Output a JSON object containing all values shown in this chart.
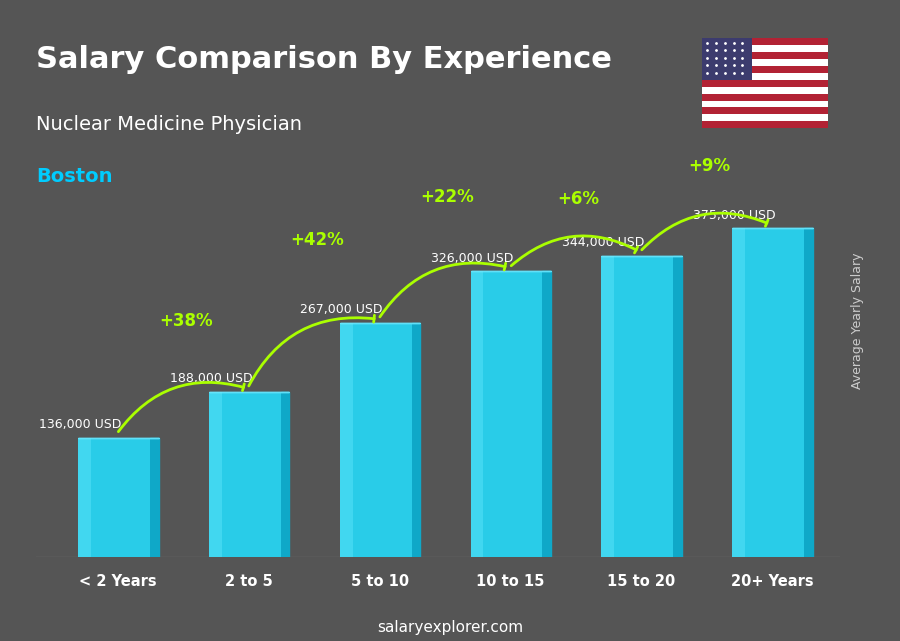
{
  "title_main": "Salary Comparison By Experience",
  "title_sub": "Nuclear Medicine Physician",
  "title_city": "Boston",
  "categories": [
    "< 2 Years",
    "2 to 5",
    "5 to 10",
    "10 to 15",
    "15 to 20",
    "20+ Years"
  ],
  "values": [
    136000,
    188000,
    267000,
    326000,
    344000,
    375000
  ],
  "labels": [
    "136,000 USD",
    "188,000 USD",
    "267,000 USD",
    "326,000 USD",
    "344,000 USD",
    "375,000 USD"
  ],
  "pct_changes": [
    "+38%",
    "+42%",
    "+22%",
    "+6%",
    "+9%"
  ],
  "bar_color_top": "#29d0f0",
  "bar_color_mid": "#1ab8d8",
  "bar_color_bot": "#0fa0c0",
  "background_color": "#555555",
  "title_color": "#ffffff",
  "city_color": "#00ccff",
  "label_color": "#ffffff",
  "pct_color": "#aaff00",
  "axis_label": "Average Yearly Salary",
  "footer": "salaryexplorer.com",
  "ylabel_color": "#cccccc"
}
